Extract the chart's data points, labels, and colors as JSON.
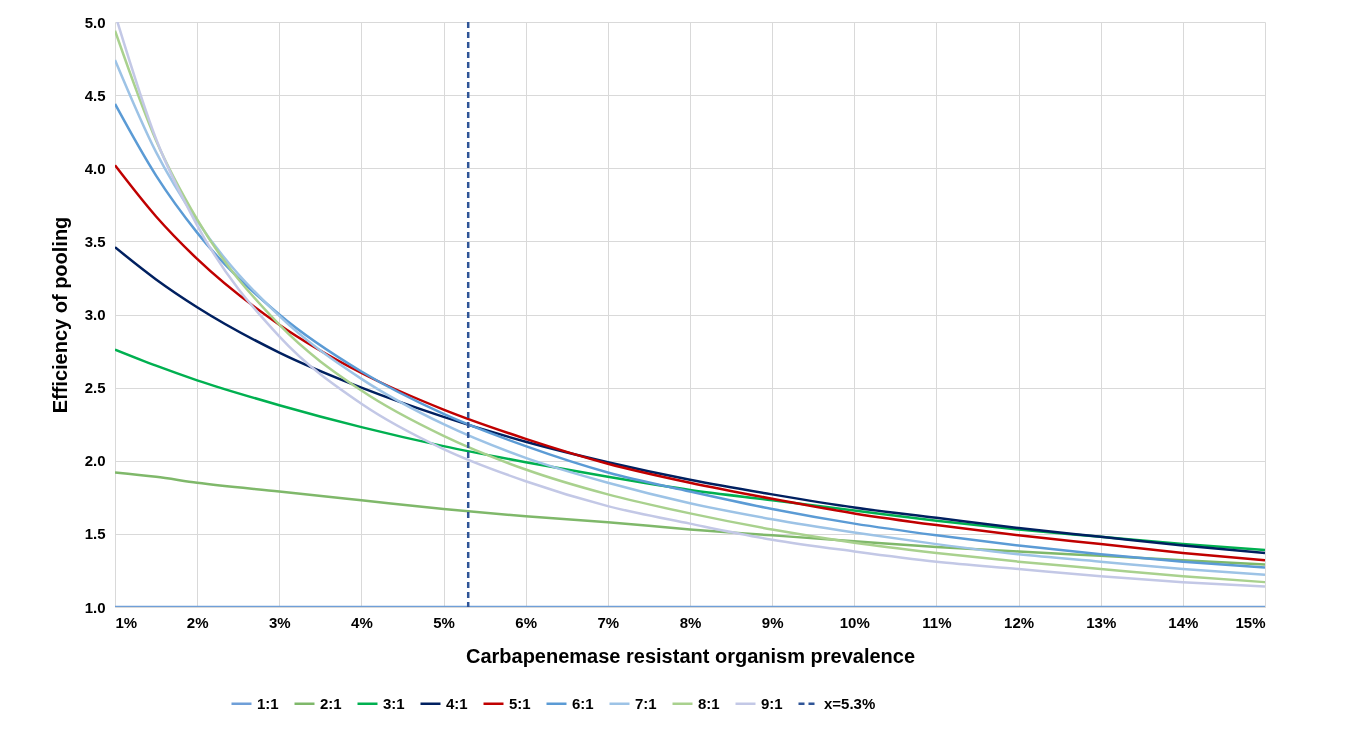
{
  "chart_data": {
    "type": "line",
    "xlabel": "Carbapenemase resistant organism prevalence",
    "ylabel": "Efficiency of pooling",
    "x": [
      1,
      1.5,
      2,
      3,
      4,
      5,
      6,
      7,
      8,
      9,
      10,
      11,
      12,
      13,
      14,
      15
    ],
    "series": [
      {
        "name": "1:1",
        "color": "#6f9fd8",
        "values": [
          1,
          1,
          1,
          1,
          1,
          1,
          1,
          1,
          1,
          1,
          1,
          1,
          1,
          1,
          1,
          1
        ]
      },
      {
        "name": "2:1",
        "color": "#7fb86a",
        "values": [
          1.92,
          1.89,
          1.85,
          1.79,
          1.73,
          1.67,
          1.62,
          1.58,
          1.53,
          1.49,
          1.45,
          1.41,
          1.38,
          1.35,
          1.32,
          1.29
        ]
      },
      {
        "name": "3:1",
        "color": "#00b050",
        "values": [
          2.76,
          2.65,
          2.55,
          2.38,
          2.23,
          2.1,
          1.99,
          1.89,
          1.8,
          1.73,
          1.66,
          1.59,
          1.53,
          1.48,
          1.43,
          1.39
        ]
      },
      {
        "name": "4:1",
        "color": "#002060",
        "values": [
          3.46,
          3.24,
          3.05,
          2.74,
          2.5,
          2.3,
          2.13,
          1.99,
          1.87,
          1.77,
          1.68,
          1.61,
          1.54,
          1.48,
          1.42,
          1.37
        ]
      },
      {
        "name": "5:1",
        "color": "#c00000",
        "values": [
          4.02,
          3.67,
          3.38,
          2.93,
          2.6,
          2.35,
          2.15,
          1.98,
          1.85,
          1.74,
          1.64,
          1.56,
          1.49,
          1.43,
          1.37,
          1.32
        ]
      },
      {
        "name": "6:1",
        "color": "#5b9bd5",
        "values": [
          4.44,
          3.95,
          3.56,
          3.0,
          2.61,
          2.32,
          2.1,
          1.92,
          1.79,
          1.67,
          1.57,
          1.49,
          1.42,
          1.36,
          1.31,
          1.27
        ]
      },
      {
        "name": "7:1",
        "color": "#9dc3e6",
        "values": [
          4.74,
          4.11,
          3.64,
          2.99,
          2.56,
          2.25,
          2.02,
          1.85,
          1.71,
          1.6,
          1.51,
          1.43,
          1.36,
          1.31,
          1.26,
          1.22
        ]
      },
      {
        "name": "8:1",
        "color": "#a9d18e",
        "values": [
          4.94,
          4.19,
          3.65,
          2.93,
          2.48,
          2.17,
          1.94,
          1.77,
          1.64,
          1.53,
          1.44,
          1.37,
          1.31,
          1.26,
          1.21,
          1.17
        ]
      },
      {
        "name": "9:1",
        "color": "#c3c8e6",
        "x": [
          1.03,
          1.5,
          2,
          3,
          4,
          5,
          6,
          7,
          8,
          9,
          10,
          11,
          12,
          13,
          14,
          15
        ],
        "values": [
          5.0,
          4.2,
          3.61,
          2.85,
          2.39,
          2.08,
          1.86,
          1.69,
          1.57,
          1.46,
          1.38,
          1.31,
          1.26,
          1.21,
          1.17,
          1.14
        ]
      }
    ],
    "ref_lines": [
      {
        "axis": "x",
        "value": 5.3,
        "label": "x=5.3%",
        "color": "#2f5597",
        "line_style": "dashed"
      }
    ],
    "xlim": [
      1,
      15
    ],
    "xticks": [
      {
        "value": 1,
        "label": "1%"
      },
      {
        "value": 2,
        "label": "2%"
      },
      {
        "value": 3,
        "label": "3%"
      },
      {
        "value": 4,
        "label": "4%"
      },
      {
        "value": 5,
        "label": "5%"
      },
      {
        "value": 6,
        "label": "6%"
      },
      {
        "value": 7,
        "label": "7%"
      },
      {
        "value": 8,
        "label": "8%"
      },
      {
        "value": 9,
        "label": "9%"
      },
      {
        "value": 10,
        "label": "10%"
      },
      {
        "value": 11,
        "label": "11%"
      },
      {
        "value": 12,
        "label": "12%"
      },
      {
        "value": 13,
        "label": "13%"
      },
      {
        "value": 14,
        "label": "14%"
      },
      {
        "value": 15,
        "label": "15%"
      }
    ],
    "ylim": [
      1,
      5
    ],
    "yticks": [
      {
        "value": 1,
        "label": "1.0"
      },
      {
        "value": 1.5,
        "label": "1.5"
      },
      {
        "value": 2,
        "label": "2.0"
      },
      {
        "value": 2.5,
        "label": "2.5"
      },
      {
        "value": 3,
        "label": "3.0"
      },
      {
        "value": 3.5,
        "label": "3.5"
      },
      {
        "value": 4,
        "label": "4.0"
      },
      {
        "value": 4.5,
        "label": "4.5"
      },
      {
        "value": 5,
        "label": "5.0"
      }
    ],
    "grid": true,
    "legend": "bottom"
  }
}
